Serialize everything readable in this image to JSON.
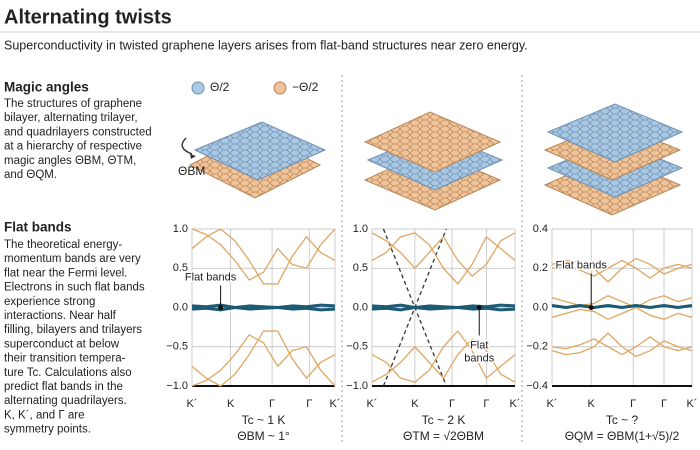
{
  "header": {
    "title": "Alternating twists",
    "subtitle": "Superconductivity in twisted graphene layers arises from flat-band structures near zero energy."
  },
  "sidebar": {
    "sections": [
      {
        "heading": "Magic angles",
        "lines": [
          "The structures of graphene",
          "bilayer, alternating trilayer,",
          "and quadrilayers constructed",
          "at a hierarchy of respective",
          "magic angles ΘBM, ΘTM,",
          "and ΘQM."
        ]
      },
      {
        "heading": "Flat bands",
        "lines": [
          "The theoretical energy-",
          "momentum bands are very",
          "flat near the Fermi level.",
          "Electrons in such flat bands",
          "experience strong",
          "interactions. Near half",
          "filling, bilayers and trilayers",
          "superconduct at below",
          "their transition tempera-",
          "ture Tc. Calculations also",
          "predict flat bands in the",
          "alternating quadrilayers.",
          "K, K´, and Γ are",
          "symmetry points."
        ]
      }
    ]
  },
  "illustration": {
    "legend": [
      "Θ/2",
      "−Θ/2"
    ],
    "angle": "ΘBM"
  },
  "chart_data": [
    {
      "type": "line",
      "caption": [
        "Tc ~ 1 K",
        "ΘBM ~ 1°"
      ],
      "x": [
        0,
        0.1,
        0.2,
        0.3,
        0.4,
        0.5,
        0.6,
        0.7,
        0.8,
        0.9,
        1.0
      ],
      "xlim": [
        0,
        1
      ],
      "ylim": [
        -1,
        1
      ],
      "grid": true,
      "xticks": [
        {
          "value": 0,
          "label": "K´"
        },
        {
          "value": 0.27,
          "label": "K"
        },
        {
          "value": 0.56,
          "label": "Γ"
        },
        {
          "value": 0.82,
          "label": "Γ"
        },
        {
          "value": 1.0,
          "label": "K´"
        }
      ],
      "yticks": [
        {
          "value": 1,
          "label": "1.0"
        },
        {
          "value": 0.5,
          "label": "0.5"
        },
        {
          "value": 0,
          "label": "0.0"
        },
        {
          "value": -0.5,
          "label": "−0.5"
        },
        {
          "value": -1,
          "label": "−1.0"
        }
      ],
      "series": [
        {
          "color": "#e0a663",
          "values": [
            1.0,
            0.93,
            0.8,
            0.6,
            0.35,
            0.45,
            0.75,
            0.55,
            0.5,
            0.8,
            1.0
          ]
        },
        {
          "color": "#e0a663",
          "values": [
            0.75,
            0.9,
            1.0,
            0.85,
            0.6,
            0.3,
            0.3,
            0.65,
            0.9,
            0.7,
            0.6
          ]
        },
        {
          "color": "#e0a663",
          "values": [
            -1.0,
            -0.93,
            -0.8,
            -0.6,
            -0.35,
            -0.45,
            -0.75,
            -0.55,
            -0.5,
            -0.8,
            -1.0
          ]
        },
        {
          "color": "#e0a663",
          "values": [
            -0.75,
            -0.9,
            -1.0,
            -0.85,
            -0.6,
            -0.3,
            -0.3,
            -0.65,
            -0.9,
            -0.7,
            -0.6
          ]
        },
        {
          "color": "#1d5a73",
          "linewidth": 3,
          "values": [
            0.02,
            0.01,
            0.03,
            0.0,
            0.02,
            0.01,
            0.0,
            0.02,
            0.01,
            0.03,
            0.02
          ]
        },
        {
          "color": "#1d5a73",
          "linewidth": 3,
          "values": [
            -0.02,
            -0.01,
            -0.03,
            0.0,
            -0.02,
            -0.01,
            0.0,
            -0.02,
            -0.01,
            -0.03,
            -0.02
          ]
        }
      ],
      "annotation": {
        "lines": [
          "Flat bands"
        ],
        "x": 0.2,
        "y": 0
      }
    },
    {
      "type": "line",
      "caption": [
        "Tc ~ 2 K",
        "ΘTM = √2ΘBM"
      ],
      "x": [
        0,
        0.1,
        0.2,
        0.3,
        0.4,
        0.5,
        0.6,
        0.7,
        0.8,
        0.9,
        1.0
      ],
      "xlim": [
        0,
        1
      ],
      "ylim": [
        -1,
        1
      ],
      "grid": true,
      "xticks": [
        {
          "value": 0,
          "label": "K´"
        },
        {
          "value": 0.3,
          "label": "K"
        },
        {
          "value": 0.56,
          "label": "Γ"
        },
        {
          "value": 0.8,
          "label": "Γ"
        },
        {
          "value": 1.0,
          "label": "K´"
        }
      ],
      "yticks": [
        {
          "value": 1,
          "label": "1.0"
        },
        {
          "value": 0.5,
          "label": "0.5"
        },
        {
          "value": 0,
          "label": "0.0"
        },
        {
          "value": -0.5,
          "label": "−0.5"
        },
        {
          "value": -1,
          "label": "−1.0"
        }
      ],
      "series": [
        {
          "color": "#333333",
          "linestyle": "dashed",
          "x": [
            0.08,
            0.52
          ],
          "values": [
            1,
            -1
          ]
        },
        {
          "color": "#333333",
          "linestyle": "dashed",
          "x": [
            0.08,
            0.52
          ],
          "values": [
            -1,
            1
          ]
        },
        {
          "color": "#e0a663",
          "values": [
            0.95,
            0.85,
            0.7,
            0.5,
            0.7,
            0.9,
            0.6,
            0.4,
            0.55,
            0.85,
            0.95
          ]
        },
        {
          "color": "#e0a663",
          "values": [
            0.6,
            0.7,
            0.9,
            0.95,
            0.8,
            0.5,
            0.3,
            0.55,
            0.9,
            0.75,
            0.6
          ]
        },
        {
          "color": "#e0a663",
          "values": [
            -0.95,
            -0.85,
            -0.7,
            -0.5,
            -0.7,
            -0.9,
            -0.6,
            -0.4,
            -0.55,
            -0.85,
            -0.95
          ]
        },
        {
          "color": "#e0a663",
          "values": [
            -0.6,
            -0.7,
            -0.9,
            -0.95,
            -0.8,
            -0.5,
            -0.3,
            -0.55,
            -0.9,
            -0.75,
            -0.6
          ]
        },
        {
          "color": "#1d5a73",
          "linewidth": 3,
          "values": [
            0.02,
            0.01,
            0.03,
            0.0,
            0.02,
            0.01,
            0.0,
            0.02,
            0.01,
            0.03,
            0.02
          ]
        },
        {
          "color": "#1d5a73",
          "linewidth": 3,
          "values": [
            -0.02,
            -0.01,
            -0.03,
            0.0,
            -0.02,
            -0.01,
            0.0,
            -0.02,
            -0.01,
            -0.03,
            -0.02
          ]
        }
      ],
      "annotation": {
        "lines": [
          "Flat",
          "bands"
        ],
        "x": 0.75,
        "y": 0
      }
    },
    {
      "type": "line",
      "caption": [
        "Tc ~ ?",
        "ΘQM = ΘBM(1+√5)/2"
      ],
      "x": [
        0,
        0.1,
        0.2,
        0.3,
        0.4,
        0.5,
        0.6,
        0.7,
        0.8,
        0.9,
        1.0
      ],
      "xlim": [
        0,
        1
      ],
      "ylim": [
        -0.4,
        0.4
      ],
      "grid": true,
      "xticks": [
        {
          "value": 0,
          "label": "K´"
        },
        {
          "value": 0.28,
          "label": "K"
        },
        {
          "value": 0.58,
          "label": "Γ"
        },
        {
          "value": 0.8,
          "label": "Γ"
        },
        {
          "value": 1.0,
          "label": "K´"
        }
      ],
      "yticks": [
        {
          "value": 0.4,
          "label": "0.4"
        },
        {
          "value": 0.2,
          "label": "0.2"
        },
        {
          "value": 0,
          "label": "0.0"
        },
        {
          "value": -0.2,
          "label": "−0.2"
        },
        {
          "value": -0.4,
          "label": "−0.4"
        }
      ],
      "series": [
        {
          "color": "#e0a663",
          "values": [
            0.2,
            0.21,
            0.19,
            0.16,
            0.2,
            0.24,
            0.2,
            0.15,
            0.2,
            0.22,
            0.2
          ]
        },
        {
          "color": "#e0a663",
          "values": [
            0.22,
            0.24,
            0.23,
            0.2,
            0.13,
            0.2,
            0.25,
            0.22,
            0.17,
            0.2,
            0.22
          ]
        },
        {
          "color": "#e0a663",
          "values": [
            -0.2,
            -0.21,
            -0.19,
            -0.16,
            -0.2,
            -0.24,
            -0.2,
            -0.15,
            -0.2,
            -0.22,
            -0.2
          ]
        },
        {
          "color": "#e0a663",
          "values": [
            -0.22,
            -0.24,
            -0.23,
            -0.2,
            -0.13,
            -0.2,
            -0.25,
            -0.22,
            -0.17,
            -0.2,
            -0.22
          ]
        },
        {
          "color": "#e0a663",
          "values": [
            0.05,
            0.03,
            0.01,
            0.02,
            0.06,
            0.03,
            0.0,
            0.04,
            0.06,
            0.03,
            0.05
          ]
        },
        {
          "color": "#e0a663",
          "values": [
            -0.05,
            -0.03,
            -0.01,
            -0.02,
            -0.06,
            -0.03,
            0.0,
            -0.04,
            -0.06,
            -0.03,
            -0.05
          ]
        },
        {
          "color": "#1d5a73",
          "linewidth": 3,
          "values": [
            0.01,
            0.0,
            0.01,
            0.0,
            0.01,
            0.0,
            0.01,
            0.0,
            0.01,
            0.0,
            0.01
          ]
        }
      ],
      "annotation": {
        "lines": [
          "Flat bands"
        ],
        "x": 0.28,
        "y": 0
      }
    }
  ]
}
